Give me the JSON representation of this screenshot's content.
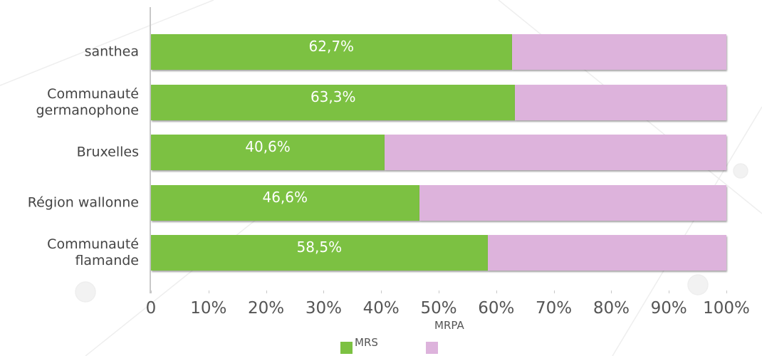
{
  "chart_data": {
    "type": "stacked-bar-horizontal",
    "categories": [
      "santhea",
      "Communauté\ngermanophone",
      "Bruxelles",
      "Région wallonne",
      "Communauté\nflamande"
    ],
    "series": [
      {
        "name": "MRS",
        "color": "#7cc142",
        "values": [
          62.7,
          63.3,
          40.6,
          46.6,
          58.5
        ],
        "value_labels": [
          "62,7%",
          "63,3%",
          "40,6%",
          "46,6%",
          "58,5%"
        ]
      },
      {
        "name": "MRPA",
        "color": "#ddb3dc",
        "values": [
          37.3,
          36.7,
          59.4,
          53.4,
          41.5
        ]
      }
    ],
    "xlim": [
      0,
      100
    ],
    "xticks": [
      0,
      {
        "value": 10,
        "label": "10%"
      },
      {
        "value": 20,
        "label": "20%"
      },
      {
        "value": 30,
        "label": "30%"
      },
      {
        "value": 40,
        "label": "40%"
      },
      {
        "value": 50,
        "label": "50%"
      },
      {
        "value": 60,
        "label": "60%"
      },
      {
        "value": 70,
        "label": "70%"
      },
      {
        "value": 80,
        "label": "80%"
      },
      {
        "value": 90,
        "label": "90%"
      },
      {
        "value": 100,
        "label": "100%"
      }
    ]
  }
}
